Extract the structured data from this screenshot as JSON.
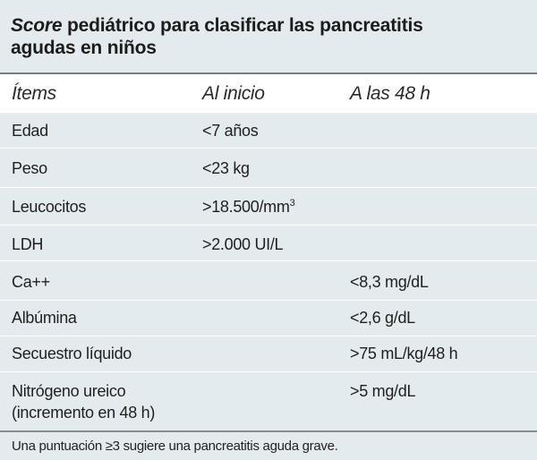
{
  "title": {
    "italic_part": "Score",
    "line1_rest": " pediátrico para clasificar las pancreatitis",
    "line2": "agudas en niños"
  },
  "headers": [
    "Ítems",
    "Al inicio",
    "A las 48 h"
  ],
  "rows": [
    {
      "item": "Edad",
      "inicio": "<7 años",
      "h48": ""
    },
    {
      "item": "Peso",
      "inicio": "<23 kg",
      "h48": ""
    },
    {
      "item": "Leucocitos",
      "inicio": ">18.500/mm",
      "inicio_sup": "3",
      "h48": ""
    },
    {
      "item": "LDH",
      "inicio": ">2.000 UI/L",
      "h48": ""
    },
    {
      "item": "Ca++",
      "inicio": "",
      "h48": "<8,3 mg/dL"
    },
    {
      "item": "Albúmina",
      "inicio": "",
      "h48": "<2,6 g/dL"
    },
    {
      "item": "Secuestro líquido",
      "inicio": "",
      "h48": ">75 mL/kg/48 h"
    },
    {
      "item_line1": "Nitrógeno ureico",
      "item_line2": "(incremento en 48 h)",
      "inicio": "",
      "h48": ">5 mg/dL"
    }
  ],
  "footer": "Una puntuación ≥3 sugiere una pancreatitis aguda grave."
}
